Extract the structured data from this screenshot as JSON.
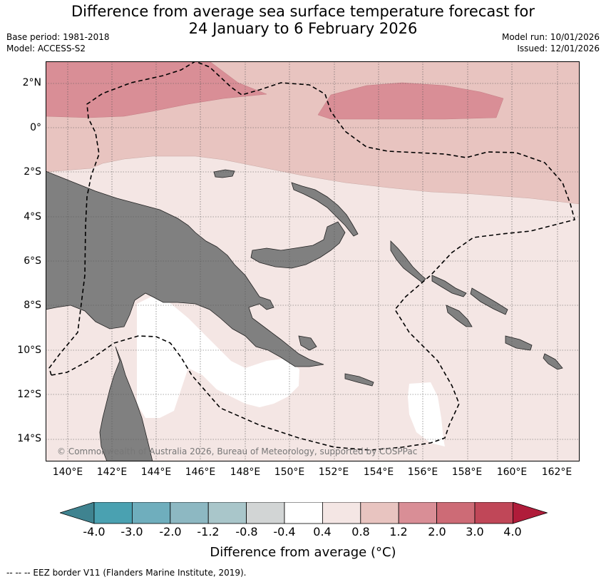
{
  "title_line1": "Difference from average sea surface temperature forecast for",
  "title_line2": "24 January to 6 February 2026",
  "base_period": "Base period: 1981-2018",
  "model": "Model: ACCESS-S2",
  "model_run": "Model run: 10/01/2026",
  "issued": "Issued: 12/01/2026",
  "copyright": "© Commonwealth of Australia 2026, Bureau of Meteorology, supported by COSPPac",
  "lat_labels": [
    "2°N",
    "0°",
    "2°S",
    "4°S",
    "6°S",
    "8°S",
    "10°S",
    "12°S",
    "14°S"
  ],
  "lon_labels": [
    "140°E",
    "142°E",
    "144°E",
    "146°E",
    "148°E",
    "150°E",
    "152°E",
    "154°E",
    "156°E",
    "158°E",
    "160°E",
    "162°E"
  ],
  "colorbar": {
    "title": "Difference from average (°C)",
    "ticks": [
      "-4.0",
      "-3.0",
      "-2.0",
      "-1.2",
      "-0.8",
      "-0.4",
      "0.4",
      "0.8",
      "1.2",
      "2.0",
      "3.0",
      "4.0"
    ],
    "colors": [
      "#3f8390",
      "#4aa1b1",
      "#6faebd",
      "#8db8c2",
      "#a9c6ca",
      "#d2d5d5",
      "#ffffff",
      "#f4e6e4",
      "#e8c4c0",
      "#d98e96",
      "#cd6b76",
      "#c04758",
      "#b01c3a"
    ]
  },
  "legend_note": "--  --  -- EEZ border V11 (Flanders Marine Institute, 2019).",
  "map_colors": {
    "land": "#808080",
    "band_0_4_to_0_8": "#f4e6e4",
    "band_0_8_to_1_2": "#e8c4c0",
    "band_1_2_to_2_0": "#d98e96",
    "neutral": "#ffffff"
  }
}
